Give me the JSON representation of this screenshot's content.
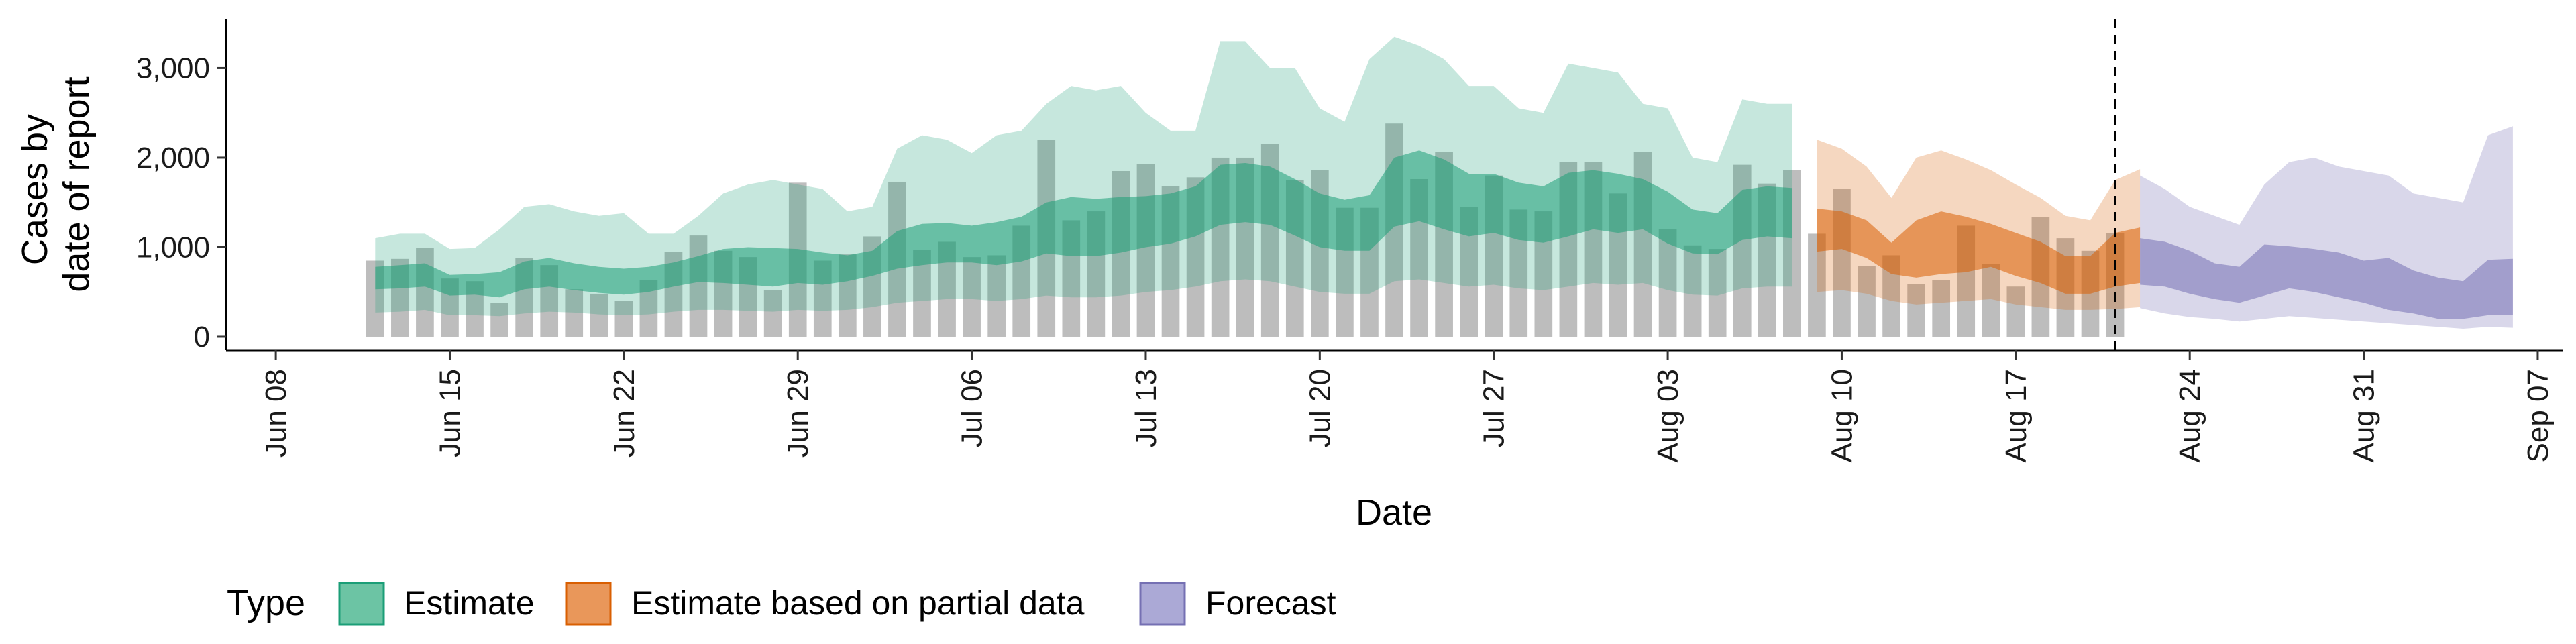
{
  "chart_data": {
    "type": "bar",
    "xlabel": "Date",
    "ylabel_lines": [
      "Cases by",
      "date of report"
    ],
    "y_ticks": [
      0,
      1000,
      2000,
      3000
    ],
    "y_tick_labels": [
      "0",
      "1,000",
      "2,000",
      "3,000"
    ],
    "ylim": [
      -150,
      3550
    ],
    "xlim": [
      "2020-06-06",
      "2020-09-08"
    ],
    "x_ticks": [
      "2020-06-08",
      "2020-06-15",
      "2020-06-22",
      "2020-06-29",
      "2020-07-06",
      "2020-07-13",
      "2020-07-20",
      "2020-07-27",
      "2020-08-03",
      "2020-08-10",
      "2020-08-17",
      "2020-08-24",
      "2020-08-31",
      "2020-09-07"
    ],
    "x_tick_labels": [
      "Jun 08",
      "Jun 15",
      "Jun 22",
      "Jun 29",
      "Jul 06",
      "Jul 13",
      "Jul 20",
      "Jul 27",
      "Aug 03",
      "Aug 10",
      "Aug 17",
      "Aug 24",
      "Aug 31",
      "Sep 07"
    ],
    "vline_date": "2020-08-21",
    "grid": false,
    "legend_position": "bottom",
    "legend": {
      "title": "Type",
      "items": [
        {
          "label": "Estimate",
          "fill": "#6cc4a4",
          "stroke": "#1b9e77"
        },
        {
          "label": "Estimate based on partial data",
          "fill": "#e9975a",
          "stroke": "#d95f02"
        },
        {
          "label": "Forecast",
          "fill": "#aba9d6",
          "stroke": "#7570b3"
        }
      ]
    },
    "bars": {
      "color": "#bdbdbd",
      "start_date": "2020-06-12",
      "values": [
        850,
        870,
        990,
        650,
        620,
        380,
        880,
        800,
        530,
        480,
        400,
        630,
        950,
        1130,
        960,
        890,
        520,
        1720,
        850,
        920,
        1120,
        1730,
        970,
        1060,
        890,
        910,
        1240,
        2200,
        1300,
        1400,
        1850,
        1930,
        1680,
        1780,
        2000,
        2000,
        2150,
        1750,
        1860,
        1440,
        1440,
        2380,
        1760,
        2060,
        1450,
        1800,
        1420,
        1400,
        1950,
        1950,
        1600,
        2060,
        1200,
        1020,
        980,
        1920,
        1710,
        1860,
        1150,
        1650,
        790,
        910,
        590,
        630,
        1240,
        810,
        560,
        1340,
        1100,
        960,
        1160
      ]
    },
    "bands": [
      {
        "name": "Estimate",
        "start_date": "2020-06-12",
        "color_outer": "#1b9e77",
        "opacity_outer": 0.25,
        "color_inner": "#1b9e77",
        "opacity_inner": 0.55,
        "outer_low": [
          270,
          280,
          300,
          240,
          240,
          230,
          260,
          280,
          270,
          250,
          240,
          250,
          280,
          300,
          300,
          290,
          280,
          300,
          290,
          300,
          330,
          380,
          400,
          420,
          420,
          400,
          420,
          460,
          440,
          440,
          460,
          500,
          520,
          560,
          620,
          640,
          620,
          560,
          500,
          480,
          480,
          620,
          640,
          600,
          560,
          580,
          540,
          520,
          560,
          600,
          580,
          600,
          520,
          470,
          460,
          540,
          560,
          560
        ],
        "outer_high": [
          1100,
          1150,
          1150,
          980,
          990,
          1200,
          1450,
          1480,
          1400,
          1350,
          1380,
          1150,
          1150,
          1350,
          1600,
          1700,
          1750,
          1700,
          1650,
          1400,
          1450,
          2100,
          2250,
          2200,
          2050,
          2250,
          2300,
          2600,
          2800,
          2750,
          2800,
          2500,
          2300,
          2300,
          3300,
          3300,
          3000,
          3000,
          2550,
          2400,
          3100,
          3350,
          3250,
          3100,
          2800,
          2800,
          2550,
          2500,
          3050,
          3000,
          2950,
          2600,
          2550,
          2000,
          1950,
          2650,
          2600,
          2600
        ],
        "inner_low": [
          530,
          540,
          560,
          460,
          470,
          440,
          530,
          560,
          520,
          490,
          470,
          500,
          560,
          610,
          600,
          580,
          560,
          600,
          580,
          620,
          680,
          760,
          800,
          830,
          830,
          800,
          840,
          930,
          900,
          900,
          940,
          1000,
          1040,
          1120,
          1250,
          1280,
          1250,
          1130,
          1000,
          960,
          960,
          1230,
          1290,
          1200,
          1120,
          1160,
          1080,
          1050,
          1120,
          1200,
          1160,
          1200,
          1040,
          930,
          920,
          1080,
          1120,
          1100
        ],
        "inner_high": [
          780,
          800,
          820,
          690,
          700,
          720,
          840,
          880,
          820,
          780,
          760,
          780,
          830,
          900,
          980,
          1000,
          990,
          980,
          940,
          910,
          960,
          1180,
          1260,
          1270,
          1240,
          1280,
          1340,
          1500,
          1560,
          1540,
          1560,
          1570,
          1600,
          1680,
          1920,
          1940,
          1900,
          1760,
          1600,
          1530,
          1580,
          2000,
          2080,
          1980,
          1820,
          1820,
          1720,
          1680,
          1830,
          1860,
          1820,
          1760,
          1620,
          1420,
          1380,
          1640,
          1680,
          1660
        ]
      },
      {
        "name": "Estimate based on partial data",
        "start_date": "2020-08-09",
        "color_outer": "#d95f02",
        "opacity_outer": 0.25,
        "color_inner": "#d95f02",
        "opacity_inner": 0.55,
        "outer_low": [
          500,
          520,
          480,
          400,
          360,
          380,
          400,
          420,
          360,
          330,
          300,
          300,
          310,
          330
        ],
        "outer_high": [
          2200,
          2100,
          1900,
          1550,
          2000,
          2080,
          1980,
          1860,
          1700,
          1550,
          1350,
          1300,
          1750,
          1870
        ],
        "inner_low": [
          950,
          980,
          880,
          700,
          660,
          700,
          720,
          780,
          680,
          600,
          480,
          480,
          560,
          600
        ],
        "inner_high": [
          1430,
          1400,
          1300,
          1050,
          1300,
          1400,
          1340,
          1260,
          1160,
          1060,
          900,
          900,
          1160,
          1220
        ]
      },
      {
        "name": "Forecast",
        "start_date": "2020-08-22",
        "color_outer": "#7570b3",
        "opacity_outer": 0.28,
        "color_inner": "#7570b3",
        "opacity_inner": 0.55,
        "outer_low": [
          320,
          260,
          220,
          200,
          170,
          200,
          230,
          210,
          190,
          170,
          150,
          130,
          110,
          90,
          110,
          100
        ],
        "outer_high": [
          1800,
          1650,
          1450,
          1350,
          1250,
          1700,
          1950,
          2000,
          1900,
          1850,
          1800,
          1600,
          1550,
          1500,
          2250,
          2350
        ],
        "inner_low": [
          580,
          560,
          480,
          420,
          380,
          460,
          540,
          500,
          440,
          380,
          300,
          260,
          200,
          200,
          240,
          240
        ],
        "inner_high": [
          1100,
          1060,
          960,
          820,
          780,
          1030,
          1010,
          980,
          940,
          850,
          880,
          740,
          660,
          620,
          860,
          870
        ]
      }
    ]
  }
}
